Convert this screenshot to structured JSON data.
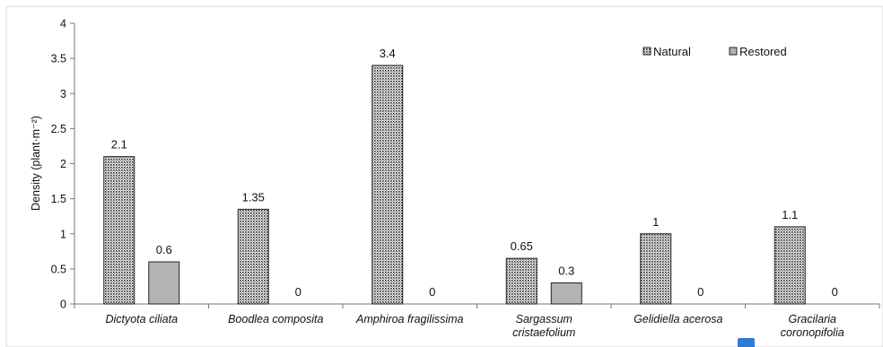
{
  "chart_data": {
    "type": "bar",
    "ylabel": "Density (plant·m⁻²)",
    "ylim": [
      0,
      4
    ],
    "yticks": [
      "0",
      "0.5",
      "1",
      "1.5",
      "2",
      "2.5",
      "3",
      "3.5",
      "4"
    ],
    "categories": [
      [
        "Dictyota ciliata"
      ],
      [
        "Boodlea composita"
      ],
      [
        "Amphiroa fragilissima"
      ],
      [
        "Sargassum",
        "cristaefolium"
      ],
      [
        "Gelidiella acerosa"
      ],
      [
        "Gracilaria",
        "coronopifolia"
      ]
    ],
    "series": [
      {
        "name": "Natural",
        "values": [
          2.1,
          1.35,
          3.4,
          0.65,
          1,
          1.1
        ],
        "labels": [
          "2.1",
          "1.35",
          "3.4",
          "0.65",
          "1",
          "1.1"
        ]
      },
      {
        "name": "Restored",
        "values": [
          0.6,
          0,
          0,
          0.3,
          0,
          0
        ],
        "labels": [
          "0.6",
          "0",
          "0",
          "0.3",
          "0",
          "0"
        ]
      }
    ],
    "legend_position": "top-right",
    "grid": false,
    "colors": {
      "natural_dot": "#222222",
      "natural_bg": "#ffffff",
      "restored": "#b3b3b3",
      "bar_border": "#222222"
    }
  }
}
